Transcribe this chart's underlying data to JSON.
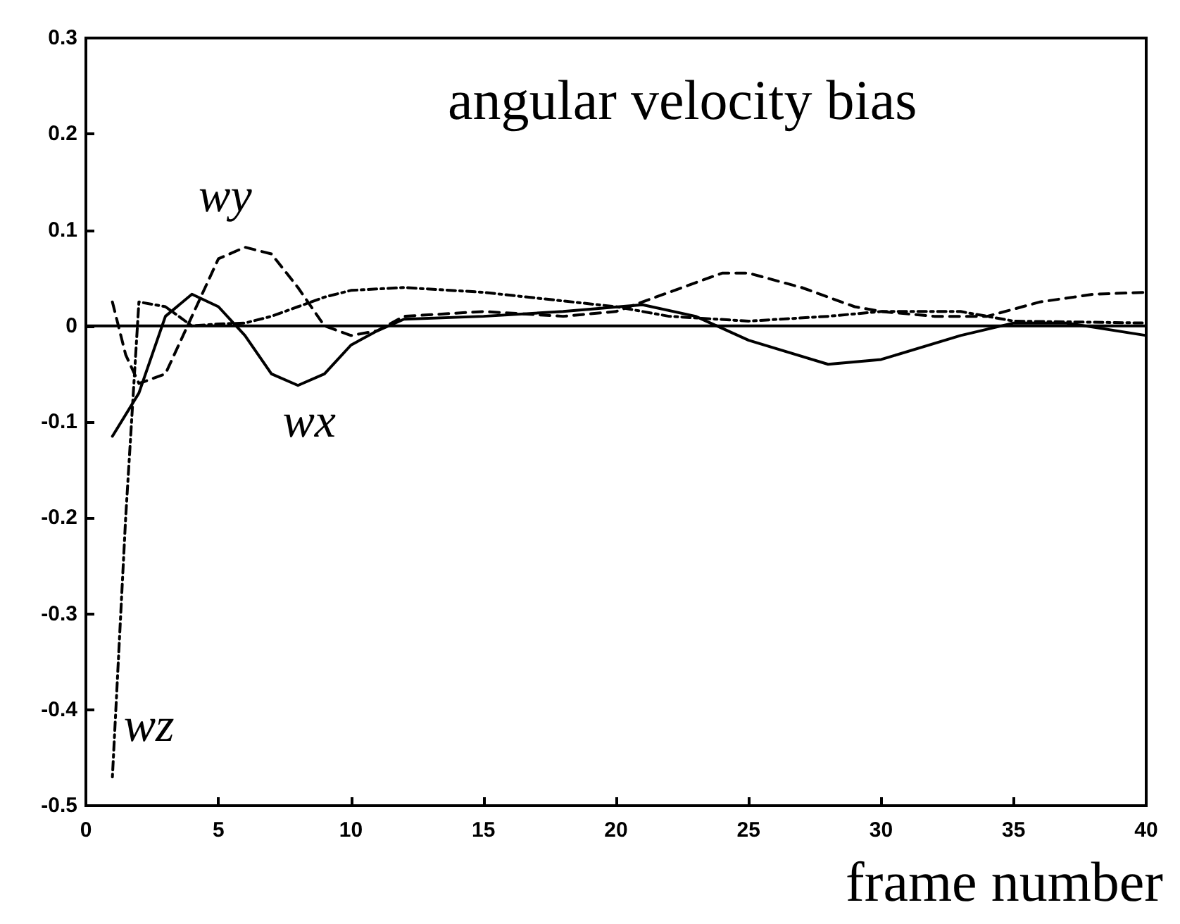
{
  "chart_data": {
    "type": "line",
    "title": "angular velocity bias",
    "xlabel": "frame number",
    "xlim": [
      0,
      40
    ],
    "xticks": [
      0,
      5,
      10,
      15,
      20,
      25,
      30,
      35,
      40
    ],
    "ylim": [
      -0.5,
      0.3
    ],
    "yticks": [
      -0.5,
      -0.4,
      -0.3,
      -0.2,
      -0.1,
      0,
      0.1,
      0.2,
      0.3
    ],
    "grid": false,
    "marker": "none",
    "ref_lines": [
      {
        "axis": "y",
        "value": 0,
        "color": "#000000",
        "line_style": "solid"
      }
    ],
    "annotations": [
      {
        "text": "wx",
        "x": 8,
        "y": -0.062
      },
      {
        "text": "wy",
        "x": 6,
        "y": 0.082
      },
      {
        "text": "wz",
        "x": 1,
        "y": -0.47
      }
    ],
    "series": [
      {
        "color": "#000000",
        "line_style": "solid",
        "x": [
          1,
          2,
          3,
          4,
          5,
          6,
          7,
          8,
          9,
          10,
          11,
          12,
          15,
          18,
          21,
          23,
          25,
          28,
          30,
          33,
          35,
          37,
          40
        ],
        "values": [
          -0.115,
          -0.07,
          0.01,
          0.033,
          0.02,
          -0.01,
          -0.05,
          -0.062,
          -0.05,
          -0.02,
          -0.005,
          0.007,
          0.01,
          0.015,
          0.022,
          0.01,
          -0.015,
          -0.04,
          -0.035,
          -0.01,
          0.003,
          0.003,
          -0.01
        ]
      },
      {
        "color": "#000000",
        "line_style": "dashed",
        "x": [
          1,
          1.5,
          2,
          3,
          4,
          5,
          6,
          7,
          8,
          9,
          10,
          11,
          12,
          15,
          18,
          20,
          22,
          24,
          25,
          27,
          29,
          30,
          32,
          34,
          36,
          38,
          40
        ],
        "values": [
          0.025,
          -0.03,
          -0.06,
          -0.05,
          0.01,
          0.07,
          0.082,
          0.075,
          0.04,
          0.0,
          -0.01,
          -0.005,
          0.01,
          0.015,
          0.01,
          0.015,
          0.035,
          0.055,
          0.055,
          0.04,
          0.02,
          0.015,
          0.01,
          0.01,
          0.025,
          0.033,
          0.035
        ]
      },
      {
        "color": "#000000",
        "line_style": "dotted",
        "x": [
          1,
          1.5,
          2,
          3,
          4,
          5,
          6,
          7,
          8,
          9,
          10,
          12,
          15,
          20,
          22,
          25,
          28,
          30,
          33,
          35,
          40
        ],
        "values": [
          -0.47,
          -0.2,
          0.025,
          0.02,
          0.0,
          0.002,
          0.003,
          0.01,
          0.02,
          0.03,
          0.037,
          0.04,
          0.035,
          0.02,
          0.01,
          0.005,
          0.01,
          0.015,
          0.015,
          0.005,
          0.003
        ]
      }
    ]
  }
}
